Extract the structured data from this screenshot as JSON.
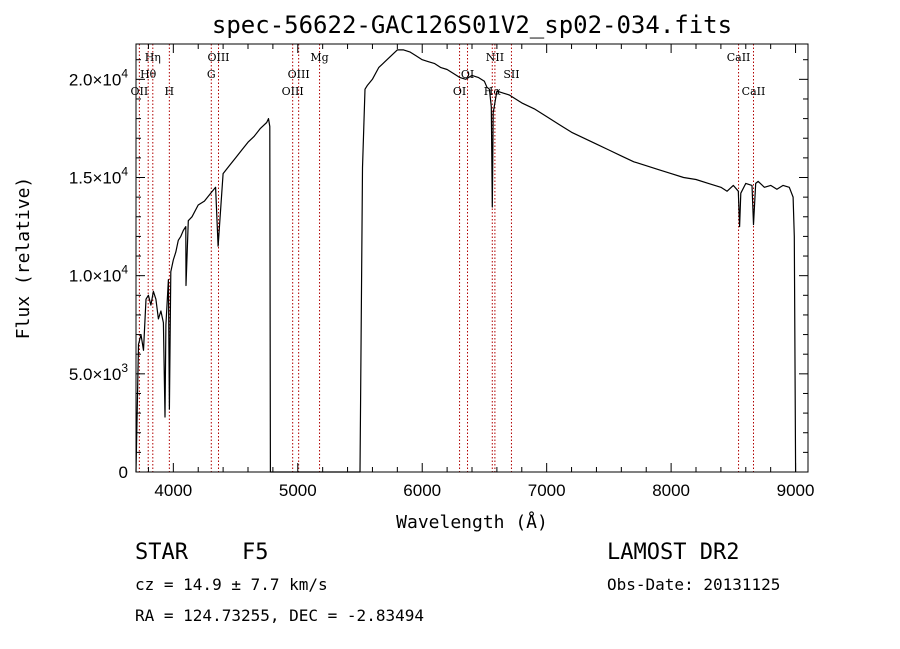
{
  "chart_data": {
    "type": "line",
    "title": "spec-56622-GAC126S01V2_sp02-034.fits",
    "xlabel": "Wavelength (Å)",
    "ylabel": "Flux (relative)",
    "xlim": [
      3700,
      9100
    ],
    "ylim": [
      0,
      21800
    ],
    "xticks": [
      {
        "value": 4000,
        "label": "4000"
      },
      {
        "value": 5000,
        "label": "5000"
      },
      {
        "value": 6000,
        "label": "6000"
      },
      {
        "value": 7000,
        "label": "7000"
      },
      {
        "value": 8000,
        "label": "8000"
      },
      {
        "value": 9000,
        "label": "9000"
      }
    ],
    "yticks": [
      {
        "value": 0,
        "mantissa": "0",
        "exponent": ""
      },
      {
        "value": 5000,
        "mantissa": "5.0×10",
        "exponent": "3"
      },
      {
        "value": 10000,
        "mantissa": "1.0×10",
        "exponent": "4"
      },
      {
        "value": 15000,
        "mantissa": "1.5×10",
        "exponent": "4"
      },
      {
        "value": 20000,
        "mantissa": "2.0×10",
        "exponent": "4"
      }
    ],
    "grid": false,
    "line_color": "#000000",
    "marker_color": "#b00000",
    "series": [
      {
        "x": [
          3700,
          3720,
          3740,
          3760,
          3780,
          3800,
          3820,
          3840,
          3860,
          3880,
          3900,
          3920,
          3933,
          3940,
          3960,
          3968,
          3980,
          4000,
          4020,
          4040,
          4060,
          4080,
          4100,
          4102,
          4120,
          4150,
          4200,
          4250,
          4300,
          4340,
          4360,
          4400,
          4450,
          4500,
          4550,
          4600,
          4650,
          4700,
          4750,
          4765,
          4775,
          4780,
          4790,
          5500,
          5520,
          5540,
          5560,
          5600,
          5650,
          5700,
          5750,
          5800,
          5850,
          5900,
          5950,
          6000,
          6050,
          6100,
          6150,
          6200,
          6250,
          6300,
          6350,
          6400,
          6450,
          6500,
          6520,
          6540,
          6555,
          6563,
          6570,
          6600,
          6650,
          6700,
          6750,
          6800,
          6900,
          7000,
          7100,
          7200,
          7300,
          7400,
          7500,
          7600,
          7700,
          7800,
          7900,
          8000,
          8100,
          8200,
          8300,
          8400,
          8450,
          8500,
          8540,
          8550,
          8560,
          8600,
          8650,
          8662,
          8680,
          8700,
          8750,
          8800,
          8850,
          8900,
          8950,
          8980,
          8990,
          9000
        ],
        "y": [
          0,
          6500,
          7000,
          6200,
          8800,
          9000,
          8500,
          9200,
          8800,
          7800,
          8200,
          7600,
          2800,
          7500,
          9800,
          3200,
          10200,
          10800,
          11200,
          11800,
          12000,
          12300,
          12500,
          9500,
          12800,
          13000,
          13600,
          13800,
          14200,
          14500,
          11500,
          15200,
          15600,
          16000,
          16400,
          16800,
          17100,
          17500,
          17800,
          18000,
          17600,
          0,
          0,
          0,
          15500,
          19500,
          19700,
          20000,
          20600,
          20900,
          21200,
          21500,
          21500,
          21400,
          21200,
          21000,
          20900,
          20800,
          20600,
          20500,
          20300,
          20100,
          20000,
          20200,
          20100,
          19900,
          19600,
          19500,
          18600,
          13500,
          18300,
          19400,
          19300,
          19200,
          19000,
          18800,
          18500,
          18100,
          17700,
          17300,
          17000,
          16700,
          16400,
          16100,
          15800,
          15600,
          15400,
          15200,
          15000,
          14900,
          14700,
          14500,
          14300,
          14600,
          14300,
          12500,
          14200,
          14700,
          14600,
          12600,
          14700,
          14800,
          14500,
          14600,
          14400,
          14600,
          14500,
          14000,
          12000,
          0
        ]
      }
    ],
    "lines": [
      {
        "name": "OII",
        "x": 3727,
        "row": 2
      },
      {
        "name": "Hθ",
        "x": 3798,
        "row": 1
      },
      {
        "name": "Hη",
        "x": 3835,
        "row": 0
      },
      {
        "name": "H",
        "x": 3968,
        "row": 2
      },
      {
        "name": "G",
        "x": 4305,
        "row": 1
      },
      {
        "name": "OIII",
        "x": 4363,
        "row": 0
      },
      {
        "name": "OIII",
        "x": 4959,
        "row": 2
      },
      {
        "name": "OIII",
        "x": 5007,
        "row": 1
      },
      {
        "name": "Mg",
        "x": 5175,
        "row": 0
      },
      {
        "name": "OI",
        "x": 6300,
        "row": 2
      },
      {
        "name": "OI",
        "x": 6364,
        "row": 1
      },
      {
        "name": "Hα",
        "x": 6563,
        "row": 2
      },
      {
        "name": "NII",
        "x": 6584,
        "row": 0
      },
      {
        "name": "SII",
        "x": 6717,
        "row": 1
      },
      {
        "name": "CaII",
        "x": 8542,
        "row": 0
      },
      {
        "name": "CaII",
        "x": 8662,
        "row": 2
      }
    ]
  },
  "info": {
    "class_label": "STAR",
    "subclass": "F5",
    "survey": "LAMOST DR2",
    "redshift_line": "cz = 14.9 ± 7.7 km/s",
    "obs_date_line": "Obs-Date: 20131125",
    "coords_line": "RA = 124.73255, DEC =  -2.83494"
  }
}
